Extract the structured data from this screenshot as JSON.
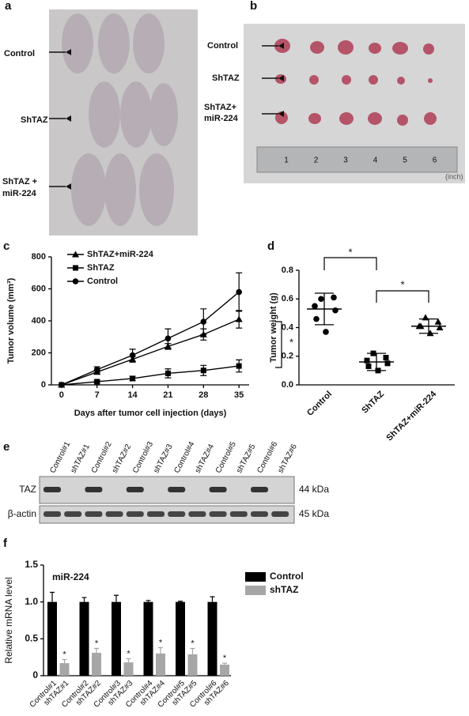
{
  "panels": {
    "a": {
      "label": "a",
      "groups": [
        {
          "lines": [
            "Control"
          ]
        },
        {
          "lines": [
            "ShTAZ"
          ]
        },
        {
          "lines": [
            "ShTAZ +",
            "miR-224"
          ]
        }
      ]
    },
    "b": {
      "label": "b",
      "groups": [
        {
          "lines": [
            "Control"
          ]
        },
        {
          "lines": [
            "ShTAZ"
          ]
        },
        {
          "lines": [
            "ShTAZ+",
            "miR-224"
          ]
        }
      ],
      "ruler_numbers": [
        "1",
        "2",
        "3",
        "4",
        "5",
        "6"
      ],
      "ruler_unit": "(inch)"
    },
    "e": {
      "label": "e",
      "lanes": [
        "Control#1",
        "shTAZ#1",
        "Control#2",
        "shTAZ#2",
        "Control#3",
        "shTAZ#3",
        "Control#4",
        "shTAZ#4",
        "Control#5",
        "shTAZ#5",
        "Control#6",
        "shTAZ#6"
      ],
      "rows": [
        {
          "name": "TAZ",
          "size": "44 kDa"
        },
        {
          "name": "β-actin",
          "size": "45 kDa"
        }
      ]
    }
  },
  "chart_data": [
    {
      "type": "line",
      "label": "c",
      "x_label": "Days after tumor cell injection (days)",
      "y_label": "Tumor volume (mm³)",
      "x": [
        0,
        7,
        14,
        21,
        28,
        35
      ],
      "xlim": [
        -2,
        37
      ],
      "xticks": [
        0,
        7,
        14,
        21,
        28,
        35
      ],
      "ylim": [
        0,
        800
      ],
      "yticks": [
        0,
        200,
        400,
        600,
        800
      ],
      "series": [
        {
          "name": "ShTAZ+miR-224",
          "marker": "triangle",
          "color": "#000000",
          "values": [
            0,
            80,
            160,
            240,
            315,
            410
          ],
          "errors": [
            0,
            12,
            18,
            18,
            35,
            55
          ]
        },
        {
          "name": "ShTAZ",
          "marker": "square",
          "color": "#000000",
          "values": [
            0,
            20,
            40,
            72,
            90,
            118
          ],
          "errors": [
            0,
            8,
            14,
            28,
            32,
            38
          ]
        },
        {
          "name": "Control",
          "marker": "circle",
          "color": "#000000",
          "values": [
            0,
            95,
            185,
            290,
            395,
            580
          ],
          "errors": [
            0,
            18,
            38,
            60,
            80,
            120
          ]
        }
      ],
      "annotation": "*"
    },
    {
      "type": "scatter",
      "label": "d",
      "y_label": "Tumor weight (g)",
      "categories": [
        "Control",
        "ShTAZ",
        "ShTAZ+miR-224"
      ],
      "ylim": [
        0,
        0.8
      ],
      "yticks": [
        {
          "value": 0,
          "label": "0.0"
        },
        {
          "value": 0.2,
          "label": "0.2"
        },
        {
          "value": 0.4,
          "label": "0.4"
        },
        {
          "value": 0.6,
          "label": "0.6"
        },
        {
          "value": 0.8,
          "label": "0.8"
        }
      ],
      "groups": [
        {
          "values": [
            0.6,
            0.61,
            0.55,
            0.52,
            0.46,
            0.37
          ],
          "mean": 0.53,
          "sd": 0.11
        },
        {
          "values": [
            0.22,
            0.19,
            0.17,
            0.15,
            0.13,
            0.1
          ],
          "mean": 0.16,
          "sd": 0.06
        },
        {
          "values": [
            0.47,
            0.44,
            0.41,
            0.4,
            0.41,
            0.36
          ],
          "mean": 0.41,
          "sd": 0.05
        }
      ],
      "annotations": [
        "*",
        "*"
      ]
    },
    {
      "type": "bar",
      "label": "f",
      "title": "miR-224",
      "y_label": "Relative mRNA level",
      "ylim": [
        0,
        1.5
      ],
      "yticks": [
        0,
        0.5,
        {
          "value": 1,
          "label": "1.0"
        },
        1.5
      ],
      "series": [
        {
          "name": "Control",
          "color": "#000000",
          "bar_labels": [
            "Control#1",
            "Control#2",
            "Control#3",
            "Control#4",
            "Control#5",
            "Control#6"
          ],
          "values": [
            1.0,
            1.0,
            1.0,
            1.0,
            1.0,
            1.0
          ],
          "errors": [
            0.13,
            0.06,
            0.09,
            0.02,
            0.01,
            0.07
          ]
        },
        {
          "name": "shTAZ",
          "color": "#a6a6a6",
          "bar_labels": [
            "shTAZ#1",
            "shTAZ#2",
            "shTAZ#3",
            "shTAZ#4",
            "shTAZ#5",
            "shTAZ#6"
          ],
          "values": [
            0.17,
            0.31,
            0.18,
            0.3,
            0.29,
            0.15
          ],
          "errors": [
            0.05,
            0.06,
            0.05,
            0.08,
            0.08,
            0.02
          ],
          "annotations": [
            "*",
            "*",
            "*",
            "*",
            "*",
            "*"
          ]
        }
      ]
    }
  ]
}
